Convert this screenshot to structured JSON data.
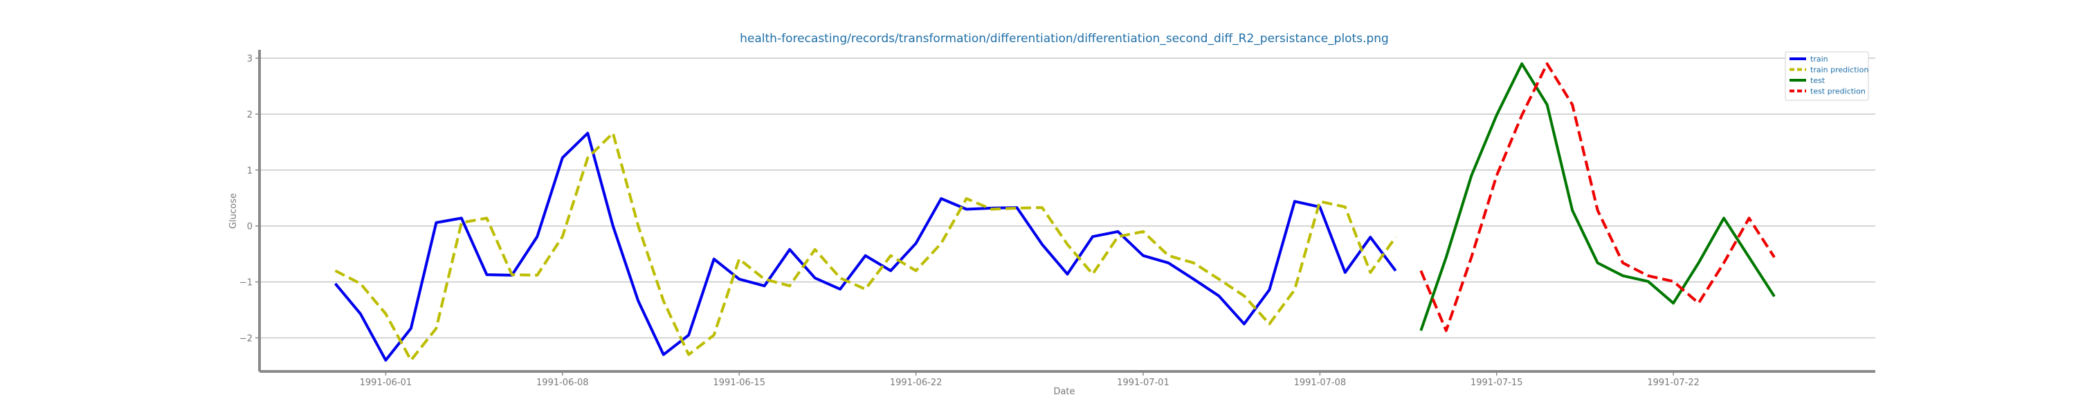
{
  "chart_data": {
    "type": "line",
    "title": "health-forecasting/records/transformation/differentiation/differentiation_second_diff_R2_persistance_plots.png",
    "xlabel": "Date",
    "ylabel": "Glucose",
    "x_start": "1991-05-30",
    "xlim": [
      "1991-05-27",
      "1991-07-30"
    ],
    "ylim": [
      -2.6,
      3.15
    ],
    "yticks": [
      -2,
      -1,
      0,
      1,
      2,
      3
    ],
    "ytick_labels": [
      "−2",
      "−1",
      "0",
      "1",
      "2",
      "3"
    ],
    "xticks": [
      "1991-06-01",
      "1991-06-08",
      "1991-06-15",
      "1991-06-22",
      "1991-07-01",
      "1991-07-08",
      "1991-07-15",
      "1991-07-22"
    ],
    "grid": "horizontal",
    "legend_position": "top-right",
    "series": [
      {
        "name": "train",
        "color": "#0000ee",
        "dash": "solid",
        "values": [
          -1.03,
          -1.57,
          -2.4,
          -1.83,
          0.06,
          0.14,
          -0.87,
          -0.88,
          -0.19,
          1.22,
          1.66,
          0.0,
          -1.34,
          -2.3,
          -1.95,
          -0.59,
          -0.95,
          -1.07,
          -0.42,
          -0.93,
          -1.13,
          -0.53,
          -0.8,
          -0.31,
          0.49,
          0.3,
          0.32,
          0.33,
          -0.33,
          -0.86,
          -0.19,
          -0.1,
          -0.53,
          -0.66,
          -0.95,
          -1.25,
          -1.75,
          -1.14,
          0.44,
          0.34,
          -0.83,
          -0.2,
          -0.8
        ]
      },
      {
        "name": "train prediction",
        "color": "#bcbd00",
        "dash": "dashed",
        "values": [
          -0.8,
          -1.03,
          -1.57,
          -2.4,
          -1.83,
          0.06,
          0.14,
          -0.87,
          -0.88,
          -0.19,
          1.22,
          1.66,
          0.0,
          -1.34,
          -2.3,
          -1.95,
          -0.59,
          -0.95,
          -1.07,
          -0.42,
          -0.93,
          -1.13,
          -0.53,
          -0.8,
          -0.31,
          0.49,
          0.3,
          0.32,
          0.33,
          -0.33,
          -0.86,
          -0.19,
          -0.1,
          -0.53,
          -0.66,
          -0.95,
          -1.25,
          -1.75,
          -1.14,
          0.44,
          0.34,
          -0.83,
          -0.2
        ]
      },
      {
        "name": "test",
        "color": "#007700",
        "dash": "solid",
        "offset": 43,
        "values": [
          -1.87,
          -0.56,
          0.9,
          1.98,
          2.9,
          2.17,
          0.28,
          -0.66,
          -0.89,
          -0.99,
          -1.38,
          -0.66,
          0.14,
          -0.56,
          -1.26
        ]
      },
      {
        "name": "test prediction",
        "color": "#ee0000",
        "dash": "dashed",
        "offset": 43,
        "values": [
          -0.8,
          -1.87,
          -0.56,
          0.9,
          1.98,
          2.9,
          2.17,
          0.28,
          -0.66,
          -0.89,
          -0.99,
          -1.38,
          -0.66,
          0.14,
          -0.56
        ]
      }
    ]
  }
}
